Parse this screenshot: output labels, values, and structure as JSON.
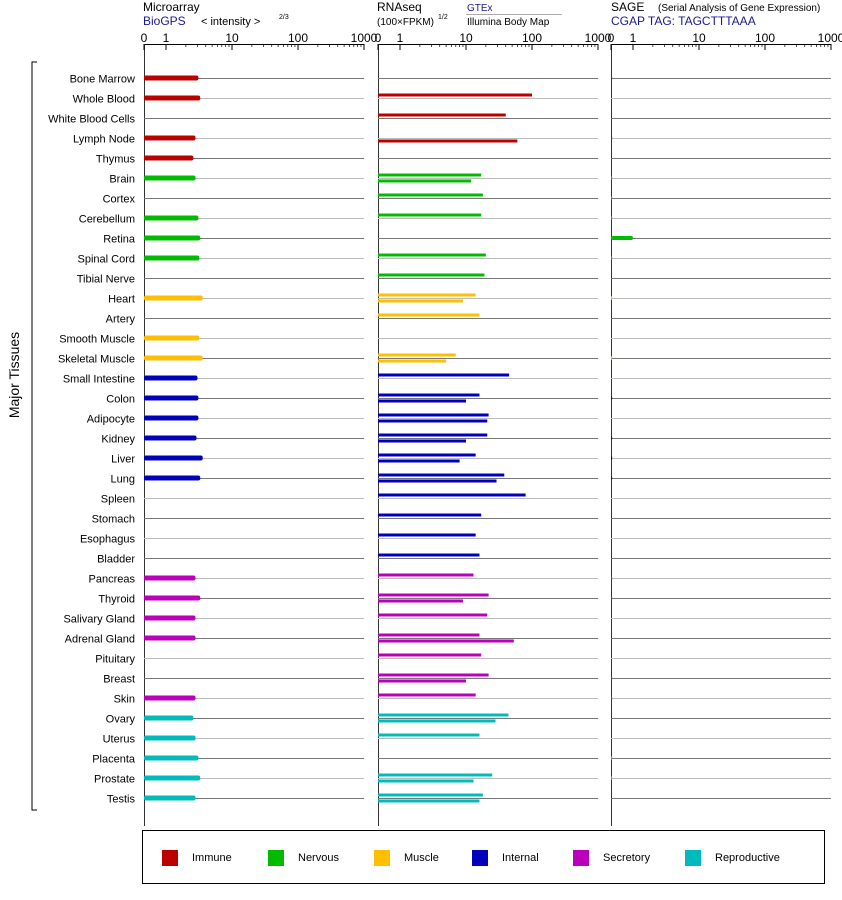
{
  "panels": {
    "microarray": {
      "title": "Microarray",
      "source": "BioGPS",
      "scale_label": "< intensity >",
      "scale_exp": "2/3"
    },
    "rnaseq": {
      "title": "RNAseq",
      "unit": "(100×FPKM)",
      "unit_exp": "1/2",
      "source1": "GTEx",
      "source2": "Illumina Body Map"
    },
    "sage": {
      "title": "SAGE",
      "subtitle": "(Serial Analysis of Gene Expression)",
      "tag": "CGAP TAG: TAGCTTTAAA"
    }
  },
  "ylabel": "Major Tissues",
  "ticks": [
    "0",
    "1",
    "10",
    "100",
    "1000"
  ],
  "legend": [
    {
      "key": "immune",
      "label": "Immune",
      "color": "#bb0000"
    },
    {
      "key": "nervous",
      "label": "Nervous",
      "color": "#00bb00"
    },
    {
      "key": "muscle",
      "label": "Muscle",
      "color": "#ffbf00"
    },
    {
      "key": "internal",
      "label": "Internal",
      "color": "#0000bb"
    },
    {
      "key": "secretory",
      "label": "Secretory",
      "color": "#bb00bb"
    },
    {
      "key": "reproductive",
      "label": "Reproductive",
      "color": "#00bbbb"
    }
  ],
  "chart_data": [
    {
      "type": "bar",
      "title": "Microarray",
      "xlim": [
        0,
        1000
      ],
      "categories": [
        "Bone Marrow",
        "Whole Blood",
        "White Blood Cells",
        "Lymph Node",
        "Thymus",
        "Brain",
        "Cortex",
        "Cerebellum",
        "Retina",
        "Spinal Cord",
        "Tibial Nerve",
        "Heart",
        "Artery",
        "Smooth Muscle",
        "Skeletal Muscle",
        "Small Intestine",
        "Colon",
        "Adipocyte",
        "Kidney",
        "Liver",
        "Lung",
        "Spleen",
        "Stomach",
        "Esophagus",
        "Bladder",
        "Pancreas",
        "Thyroid",
        "Salivary Gland",
        "Adrenal Gland",
        "Pituitary",
        "Breast",
        "Skin",
        "Ovary",
        "Uterus",
        "Placenta",
        "Prostate",
        "Testis"
      ],
      "groups": [
        "immune",
        "immune",
        "immune",
        "immune",
        "immune",
        "nervous",
        "nervous",
        "nervous",
        "nervous",
        "nervous",
        "nervous",
        "muscle",
        "muscle",
        "muscle",
        "muscle",
        "internal",
        "internal",
        "internal",
        "internal",
        "internal",
        "internal",
        "internal",
        "internal",
        "internal",
        "internal",
        "secretory",
        "secretory",
        "secretory",
        "secretory",
        "secretory",
        "secretory",
        "secretory",
        "reproductive",
        "reproductive",
        "reproductive",
        "reproductive",
        "reproductive"
      ],
      "values": [
        3.1,
        3.3,
        null,
        2.8,
        2.6,
        2.8,
        null,
        3.1,
        3.3,
        3.2,
        null,
        3.6,
        null,
        3.2,
        3.6,
        3.0,
        3.1,
        3.1,
        2.9,
        3.6,
        3.3,
        null,
        null,
        null,
        null,
        2.8,
        3.3,
        2.8,
        2.8,
        null,
        null,
        2.8,
        2.6,
        2.8,
        3.1,
        3.3,
        2.8
      ]
    },
    {
      "type": "bar",
      "title": "RNAseq",
      "xlim": [
        0,
        1000
      ],
      "categories": [
        "Bone Marrow",
        "Whole Blood",
        "White Blood Cells",
        "Lymph Node",
        "Thymus",
        "Brain",
        "Cortex",
        "Cerebellum",
        "Retina",
        "Spinal Cord",
        "Tibial Nerve",
        "Heart",
        "Artery",
        "Smooth Muscle",
        "Skeletal Muscle",
        "Small Intestine",
        "Colon",
        "Adipocyte",
        "Kidney",
        "Liver",
        "Lung",
        "Spleen",
        "Stomach",
        "Esophagus",
        "Bladder",
        "Pancreas",
        "Thyroid",
        "Salivary Gland",
        "Adrenal Gland",
        "Pituitary",
        "Breast",
        "Skin",
        "Ovary",
        "Uterus",
        "Placenta",
        "Prostate",
        "Testis"
      ],
      "groups": [
        "immune",
        "immune",
        "immune",
        "immune",
        "immune",
        "nervous",
        "nervous",
        "nervous",
        "nervous",
        "nervous",
        "nervous",
        "muscle",
        "muscle",
        "muscle",
        "muscle",
        "internal",
        "internal",
        "internal",
        "internal",
        "internal",
        "internal",
        "internal",
        "internal",
        "internal",
        "internal",
        "secretory",
        "secretory",
        "secretory",
        "secretory",
        "secretory",
        "secretory",
        "secretory",
        "reproductive",
        "reproductive",
        "reproductive",
        "reproductive",
        "reproductive"
      ],
      "series": [
        {
          "name": "GTEx",
          "values": [
            null,
            100,
            40,
            null,
            null,
            17,
            18,
            17,
            null,
            20,
            19,
            14,
            16,
            null,
            7,
            45,
            16,
            22,
            21,
            14,
            38,
            80,
            17,
            14,
            16,
            13,
            22,
            21,
            16,
            17,
            22,
            14,
            44,
            16,
            null,
            25,
            18
          ]
        },
        {
          "name": "Illumina Body Map",
          "values": [
            null,
            null,
            null,
            60,
            null,
            12,
            null,
            null,
            null,
            null,
            null,
            9,
            null,
            null,
            5,
            null,
            10,
            21,
            10,
            8,
            29,
            null,
            null,
            null,
            null,
            null,
            9,
            null,
            53,
            null,
            10,
            null,
            28,
            null,
            null,
            13,
            16
          ]
        }
      ]
    },
    {
      "type": "bar",
      "title": "SAGE",
      "xlim": [
        0,
        1000
      ],
      "categories": [
        "Bone Marrow",
        "Whole Blood",
        "White Blood Cells",
        "Lymph Node",
        "Thymus",
        "Brain",
        "Cortex",
        "Cerebellum",
        "Retina",
        "Spinal Cord",
        "Tibial Nerve",
        "Heart",
        "Artery",
        "Smooth Muscle",
        "Skeletal Muscle",
        "Small Intestine",
        "Colon",
        "Adipocyte",
        "Kidney",
        "Liver",
        "Lung",
        "Spleen",
        "Stomach",
        "Esophagus",
        "Bladder",
        "Pancreas",
        "Thyroid",
        "Salivary Gland",
        "Adrenal Gland",
        "Pituitary",
        "Breast",
        "Skin",
        "Ovary",
        "Uterus",
        "Placenta",
        "Prostate",
        "Testis"
      ],
      "groups": [
        "immune",
        "immune",
        "immune",
        "immune",
        "immune",
        "nervous",
        "nervous",
        "nervous",
        "nervous",
        "nervous",
        "nervous",
        "muscle",
        "muscle",
        "muscle",
        "muscle",
        "internal",
        "internal",
        "internal",
        "internal",
        "internal",
        "internal",
        "internal",
        "internal",
        "internal",
        "internal",
        "secretory",
        "secretory",
        "secretory",
        "secretory",
        "secretory",
        "secretory",
        "secretory",
        "reproductive",
        "reproductive",
        "reproductive",
        "reproductive",
        "reproductive"
      ],
      "values": [
        0.05,
        null,
        null,
        0.05,
        null,
        0.05,
        0.03,
        0.03,
        1.0,
        0.05,
        null,
        0.02,
        null,
        null,
        0.02,
        null,
        0.05,
        null,
        0.05,
        0.05,
        0.05,
        null,
        null,
        null,
        null,
        0.05,
        0.05,
        null,
        null,
        null,
        0.05,
        0.05,
        null,
        null,
        0.03,
        0.05,
        null
      ]
    }
  ]
}
